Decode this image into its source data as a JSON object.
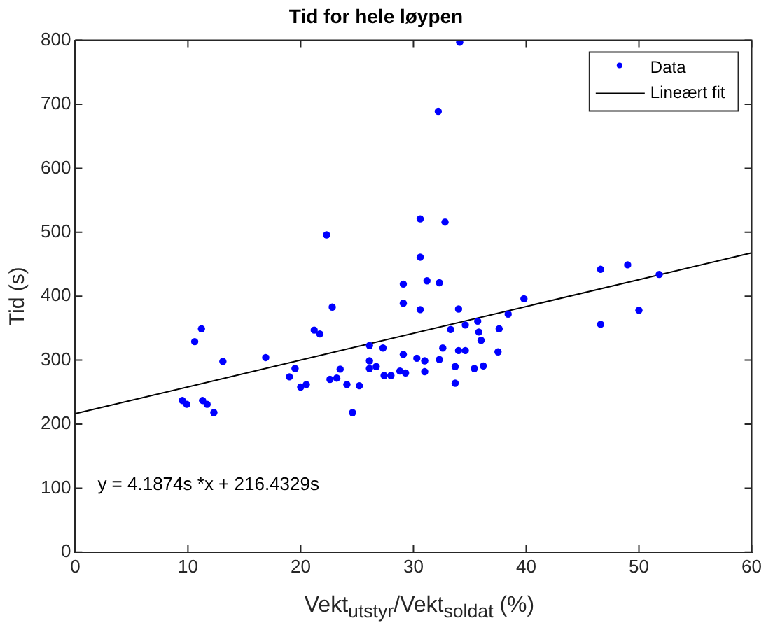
{
  "chart_data": {
    "type": "scatter",
    "title": "Tid for hele løypen",
    "xlabel": "Vekt$_{utstyr}$/Vekt$_{soldat}$ (%)",
    "ylabel": "Tid (s)",
    "xlim": [
      0,
      60
    ],
    "xticks": [
      0,
      10,
      20,
      30,
      40,
      50,
      60
    ],
    "ylim": [
      0,
      800
    ],
    "yticks": [
      0,
      100,
      200,
      300,
      400,
      500,
      600,
      700,
      800
    ],
    "grid": false,
    "legend": "top right",
    "marker": "circle",
    "annotations": [
      "y = 4.1874s *x + 216.4329s"
    ],
    "series": [
      {
        "name": "Data",
        "type": "scatter",
        "color": "#0000ff",
        "x": [
          9.5,
          9.9,
          10.6,
          11.2,
          11.3,
          11.7,
          12.3,
          13.1,
          16.9,
          19.0,
          19.5,
          20.0,
          20.5,
          21.2,
          21.7,
          22.3,
          22.6,
          22.8,
          23.2,
          23.5,
          24.1,
          24.6,
          25.2,
          26.1,
          26.1,
          26.1,
          26.7,
          27.3,
          27.4,
          28.0,
          28.8,
          29.1,
          29.1,
          29.1,
          29.3,
          30.3,
          30.6,
          30.6,
          30.6,
          31.0,
          31.0,
          31.2,
          32.2,
          32.3,
          32.3,
          32.6,
          32.8,
          33.3,
          33.7,
          33.7,
          34.0,
          34.0,
          34.1,
          34.6,
          34.6,
          35.4,
          35.7,
          35.8,
          36.0,
          36.2,
          37.5,
          37.6,
          38.4,
          39.8,
          46.6,
          46.6,
          49.0,
          50.0,
          51.8
        ],
        "values": [
          237,
          231,
          329,
          349,
          237,
          231,
          218,
          298,
          304,
          274,
          287,
          258,
          262,
          347,
          341,
          496,
          270,
          383,
          272,
          286,
          262,
          218,
          260,
          323,
          299,
          287,
          290,
          319,
          276,
          276,
          283,
          419,
          389,
          309,
          280,
          303,
          521,
          461,
          379,
          299,
          282,
          424,
          689,
          421,
          301,
          319,
          516,
          348,
          290,
          264,
          380,
          315,
          797,
          355,
          315,
          287,
          361,
          344,
          331,
          291,
          313,
          349,
          372,
          396,
          442,
          356,
          449,
          378,
          434
        ]
      },
      {
        "name": "Lineært fit",
        "type": "line",
        "color": "#000000",
        "marker": "none",
        "line_style": "solid",
        "x": [
          0,
          60
        ],
        "values": [
          216.4,
          467.7
        ]
      }
    ]
  }
}
